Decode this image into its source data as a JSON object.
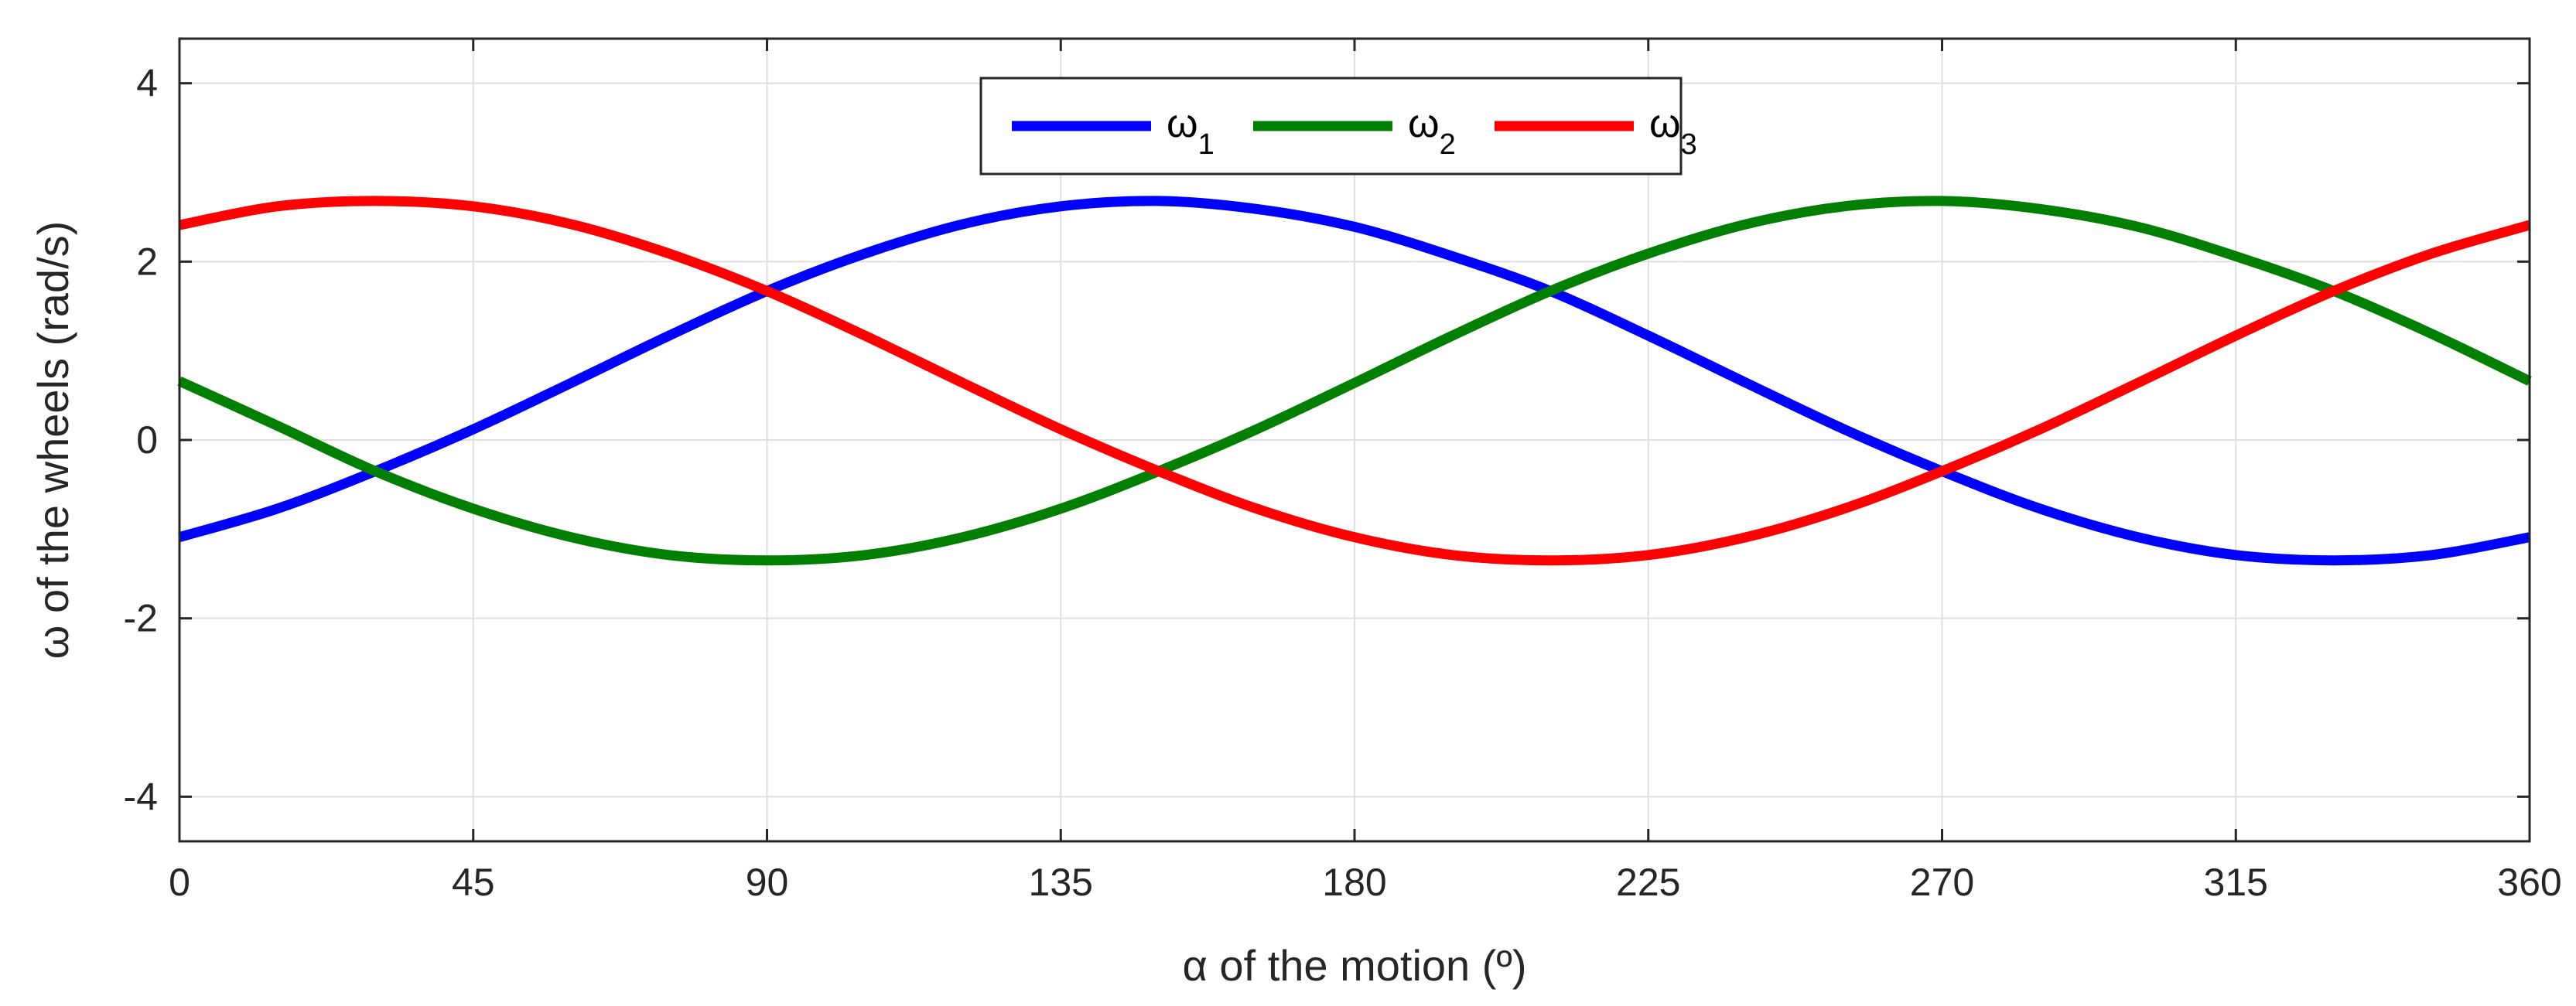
{
  "chart_data": {
    "type": "line",
    "xlabel": "α of the motion (º)",
    "ylabel": "ω of the wheels (rad/s)",
    "xlim": [
      0,
      360
    ],
    "ylim": [
      -4.5,
      4.5
    ],
    "xticks": [
      0,
      45,
      90,
      135,
      180,
      225,
      270,
      315,
      360
    ],
    "yticks": [
      -4,
      -2,
      0,
      2,
      4
    ],
    "xtick_labels": [
      "0",
      "45",
      "90",
      "135",
      "180",
      "225",
      "270",
      "315",
      "360"
    ],
    "ytick_labels": [
      "-4",
      "-2",
      "0",
      "2",
      "4"
    ],
    "grid": true,
    "legend_position": "top-center",
    "series": [
      {
        "name": "ω",
        "subscript": "1",
        "color": "#0000ff",
        "x": [
          0,
          15,
          30,
          45,
          60,
          75,
          90,
          105,
          120,
          135,
          150,
          165,
          180,
          195,
          210,
          225,
          240,
          255,
          270,
          285,
          300,
          315,
          330,
          345,
          360
        ],
        "y": [
          -1.09,
          -0.77,
          -0.35,
          0.12,
          0.64,
          1.17,
          1.67,
          2.09,
          2.42,
          2.62,
          2.68,
          2.59,
          2.39,
          2.06,
          1.67,
          1.17,
          0.64,
          0.12,
          -0.35,
          -0.77,
          -1.09,
          -1.29,
          -1.35,
          -1.29,
          -1.09
        ]
      },
      {
        "name": "ω",
        "subscript": "2",
        "color": "#007f00",
        "x": [
          0,
          15,
          30,
          45,
          60,
          75,
          90,
          105,
          120,
          135,
          150,
          165,
          180,
          195,
          210,
          225,
          240,
          255,
          270,
          285,
          300,
          315,
          330,
          345,
          360
        ],
        "y": [
          0.66,
          0.16,
          -0.35,
          -0.77,
          -1.09,
          -1.29,
          -1.35,
          -1.29,
          -1.09,
          -0.77,
          -0.35,
          0.12,
          0.64,
          1.17,
          1.67,
          2.09,
          2.42,
          2.62,
          2.68,
          2.59,
          2.39,
          2.06,
          1.67,
          1.19,
          0.66
        ]
      },
      {
        "name": "ω",
        "subscript": "3",
        "color": "#ff0000",
        "x": [
          0,
          15,
          30,
          45,
          60,
          75,
          90,
          105,
          120,
          135,
          150,
          165,
          180,
          195,
          210,
          225,
          240,
          255,
          270,
          285,
          300,
          315,
          330,
          345,
          360
        ],
        "y": [
          2.41,
          2.62,
          2.68,
          2.62,
          2.42,
          2.09,
          1.67,
          1.17,
          0.64,
          0.12,
          -0.35,
          -0.77,
          -1.09,
          -1.29,
          -1.35,
          -1.29,
          -1.09,
          -0.77,
          -0.35,
          0.12,
          0.64,
          1.17,
          1.67,
          2.09,
          2.41
        ]
      }
    ]
  }
}
